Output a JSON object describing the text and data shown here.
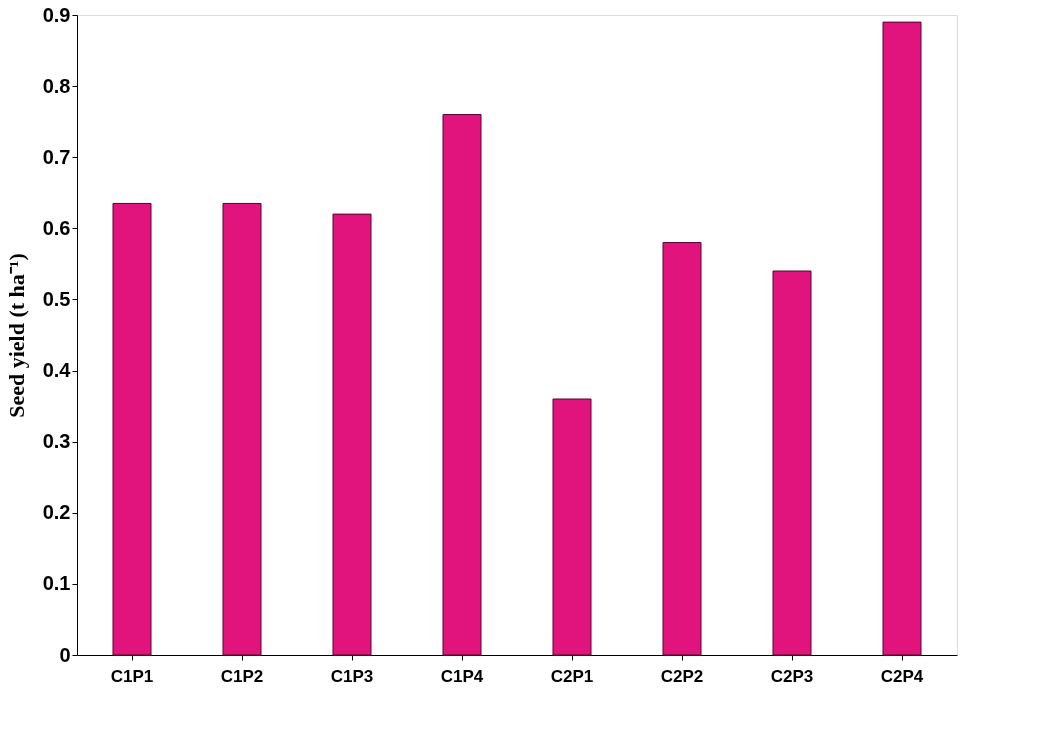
{
  "chart_data": {
    "type": "bar",
    "ylabel": "Seed yield (t ha⁻¹)",
    "categories": [
      "C1P1",
      "C1P2",
      "C1P3",
      "C1P4",
      "C2P1",
      "C2P2",
      "C2P3",
      "C2P4"
    ],
    "values": [
      0.635,
      0.635,
      0.62,
      0.76,
      0.36,
      0.58,
      0.54,
      0.89
    ],
    "color": "#e0147c",
    "ylim": [
      0,
      0.9
    ],
    "yticks": [
      0,
      0.1,
      0.2,
      0.3,
      0.4,
      0.5,
      0.6,
      0.7,
      0.8,
      0.9
    ],
    "grid": false
  }
}
